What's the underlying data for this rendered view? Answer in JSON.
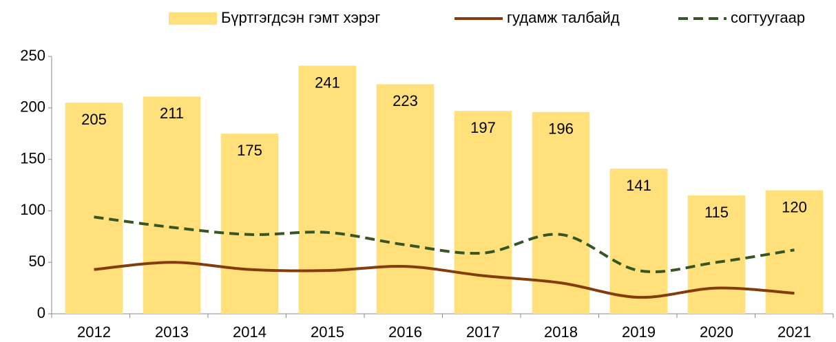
{
  "chart_data": {
    "type": "bar",
    "categories": [
      "2012",
      "2013",
      "2014",
      "2015",
      "2016",
      "2017",
      "2018",
      "2019",
      "2020",
      "2021"
    ],
    "series": [
      {
        "name": "Бүртгэгдсэн гэмт хэрэг",
        "type": "bar",
        "color": "#ffe07a",
        "values": [
          205,
          211,
          175,
          241,
          223,
          197,
          196,
          141,
          115,
          120
        ]
      },
      {
        "name": "гудамж талбайд",
        "type": "line",
        "color": "#843c0c",
        "dash": false,
        "values": [
          43,
          50,
          43,
          42,
          46,
          37,
          30,
          16,
          25,
          20
        ]
      },
      {
        "name": "согтуугаар",
        "type": "line",
        "color": "#375623",
        "dash": true,
        "values": [
          94,
          84,
          77,
          79,
          67,
          59,
          77,
          42,
          50,
          62
        ]
      }
    ],
    "ylim": [
      0,
      250
    ],
    "yticks": [
      0,
      50,
      100,
      150,
      200,
      250
    ],
    "legend": "top",
    "grid": false
  }
}
